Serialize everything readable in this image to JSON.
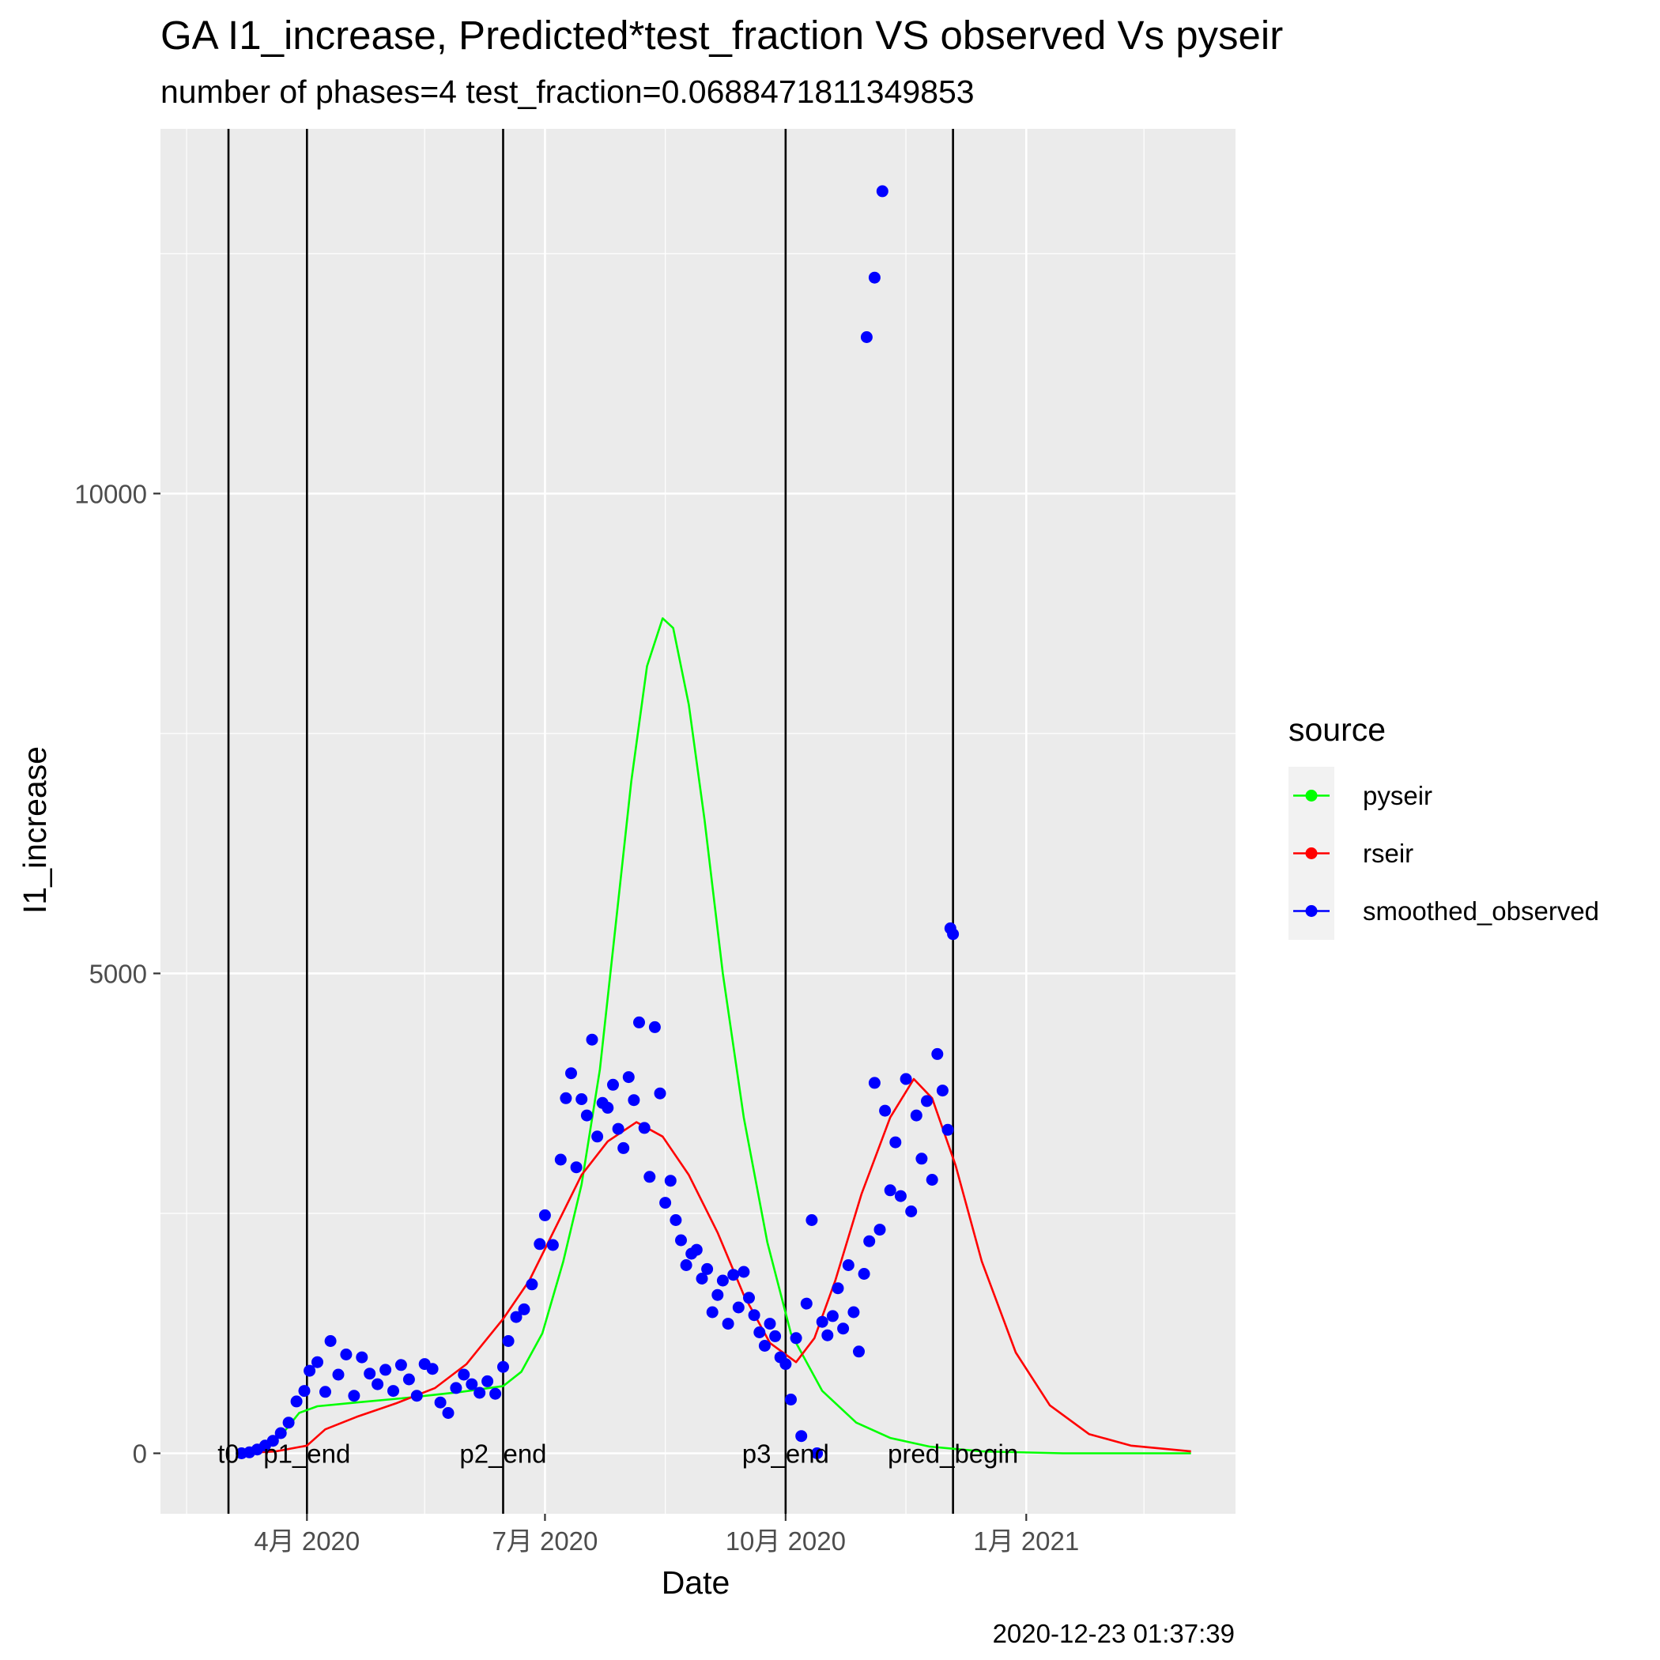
{
  "chart_data": {
    "type": "line",
    "title": "GA I1_increase, Predicted*test_fraction VS observed Vs pyseir",
    "subtitle": "number of phases=4   test_fraction=0.0688471811349853",
    "xlabel": "Date",
    "ylabel": "I1_increase",
    "caption": "2020-12-23 01:37:39",
    "x_axis": {
      "type": "date",
      "range": [
        "2020-02-05",
        "2021-03-22"
      ]
    },
    "ylim": [
      -630,
      13800
    ],
    "x_ticks": [
      {
        "date": "2020-04-01",
        "label": "4月 2020"
      },
      {
        "date": "2020-07-01",
        "label": "7月 2020"
      },
      {
        "date": "2020-10-01",
        "label": "10月 2020"
      },
      {
        "date": "2021-01-01",
        "label": "1月 2021"
      }
    ],
    "x_minor_ticks": [
      "2020-02-15",
      "2020-05-16",
      "2020-08-16",
      "2020-11-16",
      "2021-02-15"
    ],
    "y_ticks": [
      0,
      5000,
      10000
    ],
    "y_minor_ticks": [
      2500,
      7500,
      12500
    ],
    "grid": true,
    "legend": {
      "title": "source",
      "position": "right",
      "entries": [
        {
          "name": "pyseir",
          "color": "#00ff00"
        },
        {
          "name": "rseir",
          "color": "#ff0000"
        },
        {
          "name": "smoothed_observed",
          "color": "#0000ff"
        }
      ]
    },
    "vlines": [
      {
        "date": "2020-03-02",
        "label": "t0"
      },
      {
        "date": "2020-04-01",
        "label": "p1_end"
      },
      {
        "date": "2020-06-15",
        "label": "p2_end"
      },
      {
        "date": "2020-10-01",
        "label": "p3_end"
      },
      {
        "date": "2020-12-04",
        "label": "pred_begin"
      }
    ],
    "series": [
      {
        "name": "pyseir",
        "type": "line",
        "color": "#00ff00",
        "points": [
          [
            "2020-03-07",
            0
          ],
          [
            "2020-03-15",
            40
          ],
          [
            "2020-03-22",
            180
          ],
          [
            "2020-03-29",
            420
          ],
          [
            "2020-04-05",
            490
          ],
          [
            "2020-04-20",
            530
          ],
          [
            "2020-05-10",
            580
          ],
          [
            "2020-05-30",
            640
          ],
          [
            "2020-06-15",
            700
          ],
          [
            "2020-06-22",
            850
          ],
          [
            "2020-06-30",
            1250
          ],
          [
            "2020-07-08",
            2000
          ],
          [
            "2020-07-15",
            2800
          ],
          [
            "2020-07-22",
            4000
          ],
          [
            "2020-07-28",
            5500
          ],
          [
            "2020-08-03",
            7000
          ],
          [
            "2020-08-09",
            8200
          ],
          [
            "2020-08-15",
            8700
          ],
          [
            "2020-08-19",
            8600
          ],
          [
            "2020-08-25",
            7800
          ],
          [
            "2020-08-31",
            6600
          ],
          [
            "2020-09-07",
            5000
          ],
          [
            "2020-09-15",
            3500
          ],
          [
            "2020-09-24",
            2200
          ],
          [
            "2020-10-03",
            1250
          ],
          [
            "2020-10-15",
            650
          ],
          [
            "2020-10-28",
            320
          ],
          [
            "2020-11-10",
            160
          ],
          [
            "2020-11-25",
            70
          ],
          [
            "2020-12-15",
            20
          ],
          [
            "2021-01-15",
            0
          ],
          [
            "2021-03-05",
            0
          ]
        ]
      },
      {
        "name": "rseir",
        "type": "line",
        "color": "#ff0000",
        "points": [
          [
            "2020-03-07",
            0
          ],
          [
            "2020-03-20",
            20
          ],
          [
            "2020-04-01",
            80
          ],
          [
            "2020-04-08",
            250
          ],
          [
            "2020-04-20",
            380
          ],
          [
            "2020-05-05",
            520
          ],
          [
            "2020-05-20",
            680
          ],
          [
            "2020-06-01",
            930
          ],
          [
            "2020-06-15",
            1400
          ],
          [
            "2020-06-25",
            1800
          ],
          [
            "2020-07-05",
            2350
          ],
          [
            "2020-07-15",
            2900
          ],
          [
            "2020-07-25",
            3250
          ],
          [
            "2020-08-05",
            3450
          ],
          [
            "2020-08-15",
            3300
          ],
          [
            "2020-08-25",
            2900
          ],
          [
            "2020-09-05",
            2300
          ],
          [
            "2020-09-15",
            1650
          ],
          [
            "2020-09-25",
            1150
          ],
          [
            "2020-10-05",
            950
          ],
          [
            "2020-10-12",
            1200
          ],
          [
            "2020-10-20",
            1800
          ],
          [
            "2020-10-30",
            2700
          ],
          [
            "2020-11-10",
            3500
          ],
          [
            "2020-11-19",
            3900
          ],
          [
            "2020-11-26",
            3700
          ],
          [
            "2020-12-05",
            3000
          ],
          [
            "2020-12-15",
            2000
          ],
          [
            "2020-12-28",
            1050
          ],
          [
            "2021-01-10",
            500
          ],
          [
            "2021-01-25",
            200
          ],
          [
            "2021-02-10",
            80
          ],
          [
            "2021-03-05",
            20
          ]
        ]
      },
      {
        "name": "smoothed_observed",
        "type": "scatter",
        "color": "#0000ff",
        "points": [
          [
            "2020-03-07",
            0
          ],
          [
            "2020-03-10",
            10
          ],
          [
            "2020-03-13",
            40
          ],
          [
            "2020-03-16",
            80
          ],
          [
            "2020-03-19",
            130
          ],
          [
            "2020-03-22",
            210
          ],
          [
            "2020-03-25",
            320
          ],
          [
            "2020-03-28",
            540
          ],
          [
            "2020-03-31",
            650
          ],
          [
            "2020-04-02",
            860
          ],
          [
            "2020-04-05",
            950
          ],
          [
            "2020-04-08",
            640
          ],
          [
            "2020-04-10",
            1170
          ],
          [
            "2020-04-13",
            820
          ],
          [
            "2020-04-16",
            1030
          ],
          [
            "2020-04-19",
            600
          ],
          [
            "2020-04-22",
            1000
          ],
          [
            "2020-04-25",
            830
          ],
          [
            "2020-04-28",
            720
          ],
          [
            "2020-05-01",
            870
          ],
          [
            "2020-05-04",
            650
          ],
          [
            "2020-05-07",
            920
          ],
          [
            "2020-05-10",
            770
          ],
          [
            "2020-05-13",
            600
          ],
          [
            "2020-05-16",
            930
          ],
          [
            "2020-05-19",
            880
          ],
          [
            "2020-05-22",
            530
          ],
          [
            "2020-05-25",
            420
          ],
          [
            "2020-05-28",
            680
          ],
          [
            "2020-05-31",
            820
          ],
          [
            "2020-06-03",
            720
          ],
          [
            "2020-06-06",
            630
          ],
          [
            "2020-06-09",
            750
          ],
          [
            "2020-06-12",
            620
          ],
          [
            "2020-06-15",
            900
          ],
          [
            "2020-06-17",
            1170
          ],
          [
            "2020-06-20",
            1420
          ],
          [
            "2020-06-23",
            1500
          ],
          [
            "2020-06-26",
            1760
          ],
          [
            "2020-06-29",
            2180
          ],
          [
            "2020-07-01",
            2480
          ],
          [
            "2020-07-04",
            2170
          ],
          [
            "2020-07-07",
            3060
          ],
          [
            "2020-07-09",
            3700
          ],
          [
            "2020-07-11",
            3960
          ],
          [
            "2020-07-13",
            2980
          ],
          [
            "2020-07-15",
            3690
          ],
          [
            "2020-07-17",
            3520
          ],
          [
            "2020-07-19",
            4310
          ],
          [
            "2020-07-21",
            3300
          ],
          [
            "2020-07-23",
            3650
          ],
          [
            "2020-07-25",
            3600
          ],
          [
            "2020-07-27",
            3840
          ],
          [
            "2020-07-29",
            3380
          ],
          [
            "2020-07-31",
            3180
          ],
          [
            "2020-08-02",
            3920
          ],
          [
            "2020-08-04",
            3680
          ],
          [
            "2020-08-06",
            4490
          ],
          [
            "2020-08-08",
            3390
          ],
          [
            "2020-08-10",
            2880
          ],
          [
            "2020-08-12",
            4440
          ],
          [
            "2020-08-14",
            3750
          ],
          [
            "2020-08-16",
            2610
          ],
          [
            "2020-08-18",
            2840
          ],
          [
            "2020-08-20",
            2430
          ],
          [
            "2020-08-22",
            2220
          ],
          [
            "2020-08-24",
            1960
          ],
          [
            "2020-08-26",
            2080
          ],
          [
            "2020-08-28",
            2120
          ],
          [
            "2020-08-30",
            1820
          ],
          [
            "2020-09-01",
            1920
          ],
          [
            "2020-09-03",
            1470
          ],
          [
            "2020-09-05",
            1650
          ],
          [
            "2020-09-07",
            1800
          ],
          [
            "2020-09-09",
            1350
          ],
          [
            "2020-09-11",
            1860
          ],
          [
            "2020-09-13",
            1520
          ],
          [
            "2020-09-15",
            1890
          ],
          [
            "2020-09-17",
            1620
          ],
          [
            "2020-09-19",
            1440
          ],
          [
            "2020-09-21",
            1260
          ],
          [
            "2020-09-23",
            1120
          ],
          [
            "2020-09-25",
            1350
          ],
          [
            "2020-09-27",
            1220
          ],
          [
            "2020-09-29",
            1000
          ],
          [
            "2020-10-01",
            930
          ],
          [
            "2020-10-03",
            560
          ],
          [
            "2020-10-05",
            1200
          ],
          [
            "2020-10-07",
            180
          ],
          [
            "2020-10-09",
            1560
          ],
          [
            "2020-10-11",
            2430
          ],
          [
            "2020-10-13",
            0
          ],
          [
            "2020-10-15",
            1370
          ],
          [
            "2020-10-17",
            1230
          ],
          [
            "2020-10-19",
            1430
          ],
          [
            "2020-10-21",
            1720
          ],
          [
            "2020-10-23",
            1300
          ],
          [
            "2020-10-25",
            1960
          ],
          [
            "2020-10-27",
            1470
          ],
          [
            "2020-10-29",
            1060
          ],
          [
            "2020-10-31",
            1870
          ],
          [
            "2020-11-02",
            2210
          ],
          [
            "2020-11-04",
            3860
          ],
          [
            "2020-11-06",
            2330
          ],
          [
            "2020-11-08",
            3570
          ],
          [
            "2020-11-10",
            2740
          ],
          [
            "2020-11-12",
            3240
          ],
          [
            "2020-11-14",
            2680
          ],
          [
            "2020-11-16",
            3900
          ],
          [
            "2020-11-18",
            2520
          ],
          [
            "2020-11-20",
            3520
          ],
          [
            "2020-11-22",
            3070
          ],
          [
            "2020-11-24",
            3670
          ],
          [
            "2020-11-26",
            2850
          ],
          [
            "2020-11-28",
            4160
          ],
          [
            "2020-11-30",
            3780
          ],
          [
            "2020-12-02",
            3370
          ],
          [
            "2020-12-03",
            5470
          ],
          [
            "2020-12-04",
            5410
          ],
          [
            "2020-11-01",
            11630
          ],
          [
            "2020-11-04",
            12250
          ],
          [
            "2020-11-07",
            13150
          ]
        ]
      }
    ]
  }
}
